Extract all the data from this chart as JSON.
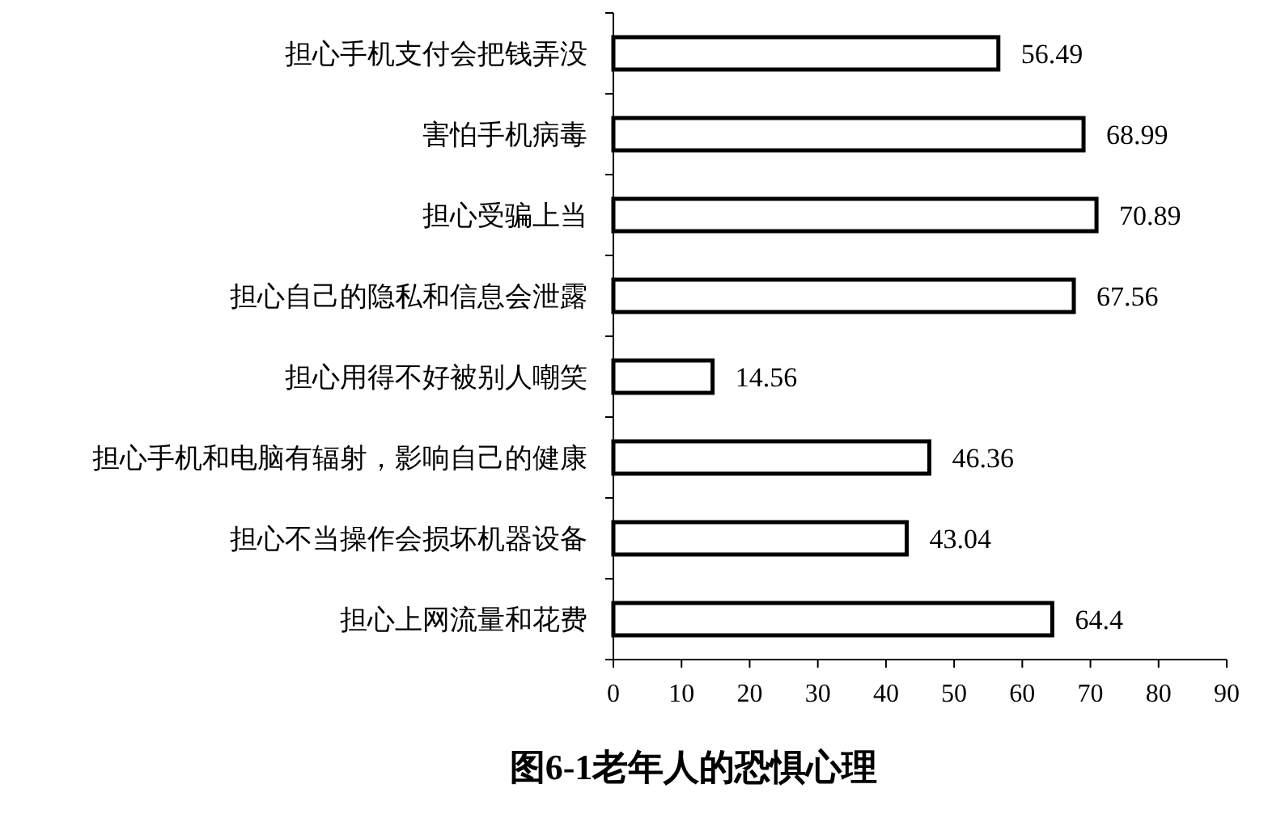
{
  "chart_data": {
    "type": "bar",
    "orientation": "horizontal",
    "title": "图6-1老年人的恐惧心理",
    "categories": [
      "担心手机支付会把钱弄没",
      "害怕手机病毒",
      "担心受骗上当",
      "担心自己的隐私和信息会泄露",
      "担心用得不好被别人嘲笑",
      "担心手机和电脑有辐射，影响自己的健康",
      "担心不当操作会损坏机器设备",
      "担心上网流量和花费"
    ],
    "values": [
      56.49,
      68.99,
      70.89,
      67.56,
      14.56,
      46.36,
      43.04,
      64.4
    ],
    "color": "#ffffff",
    "xlim": [
      0,
      90
    ],
    "xticks": [
      0,
      10,
      20,
      30,
      40,
      50,
      60,
      70,
      80,
      90
    ],
    "data_labels": true
  }
}
